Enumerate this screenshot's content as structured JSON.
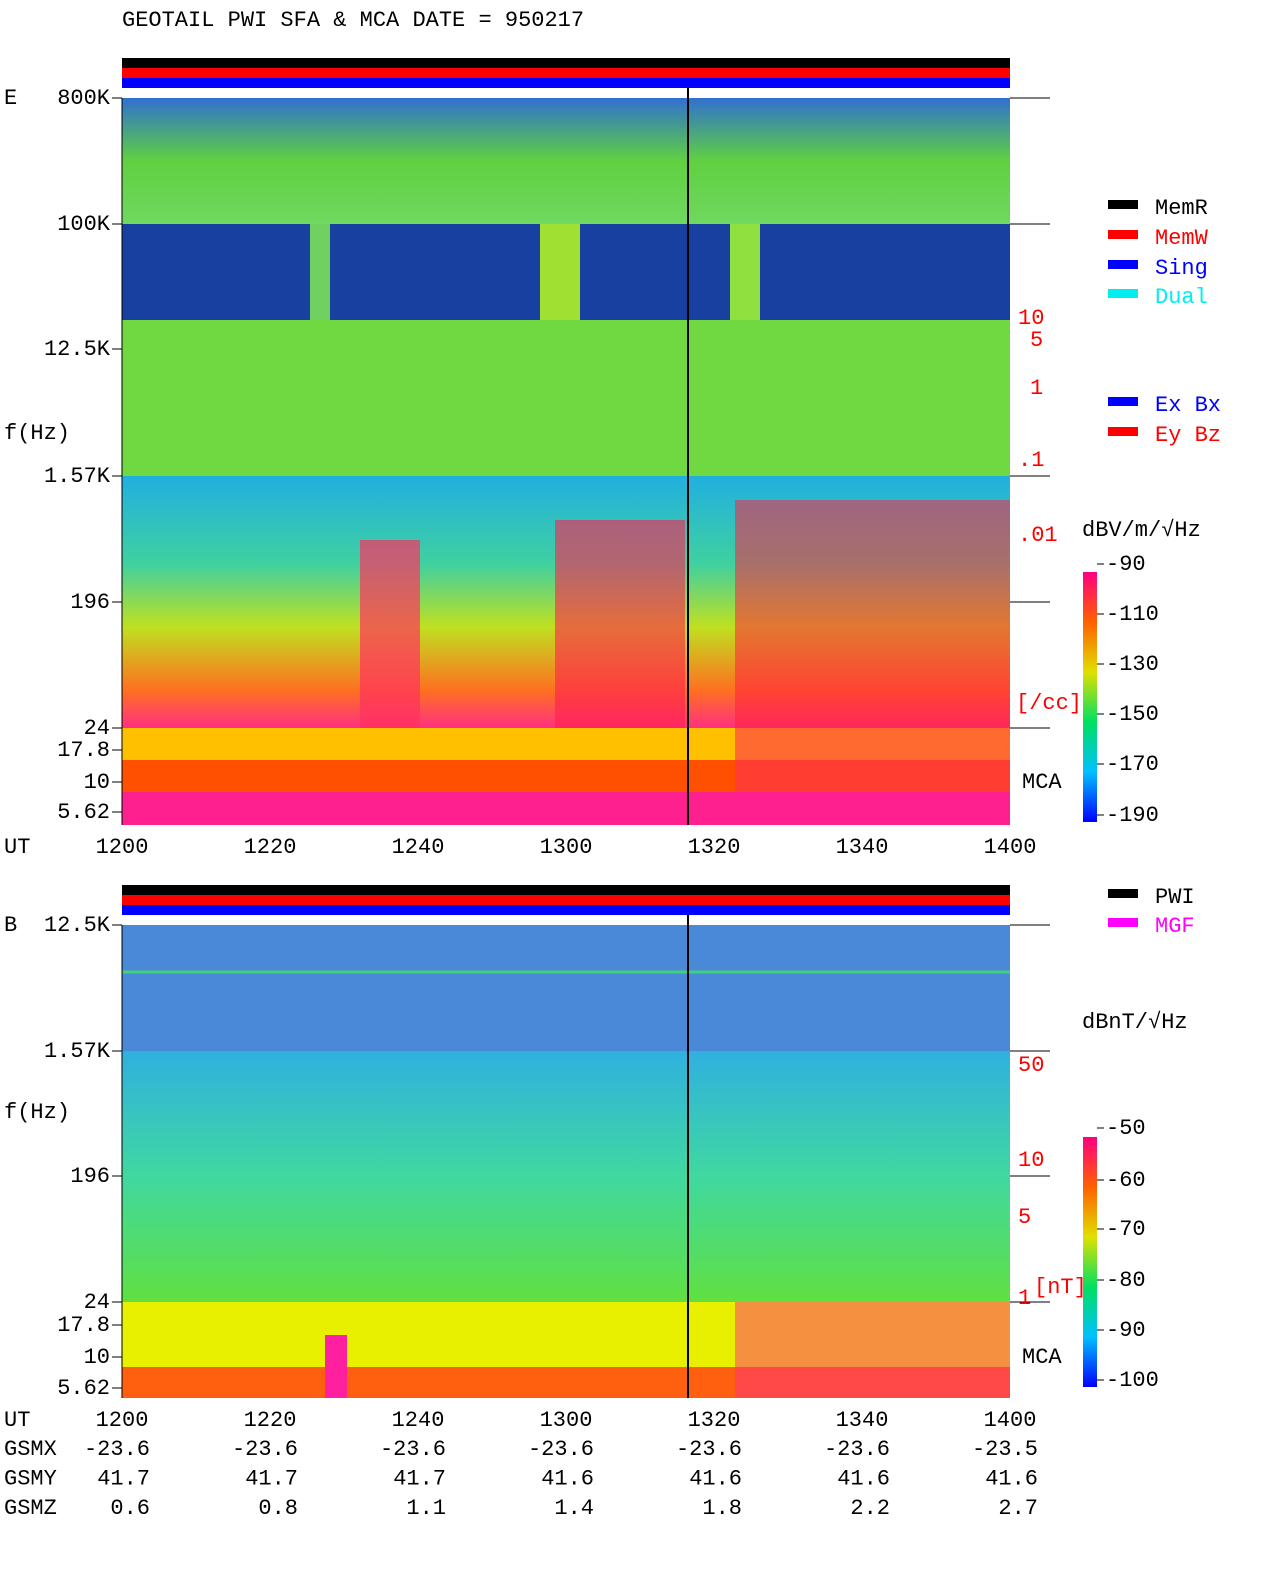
{
  "title": "GEOTAIL  PWI SFA & MCA   DATE = 950217",
  "panels": [
    {
      "label": "E",
      "y_axis_label": "f(Hz)",
      "y_ticks": [
        "800K",
        "100K",
        "12.5K",
        "1.57K",
        "196",
        "24",
        "17.8",
        "10",
        "5.62"
      ],
      "x_axis_label": "UT",
      "x_ticks": [
        "1200",
        "1220",
        "1240",
        "1300",
        "1320",
        "1340",
        "1400"
      ],
      "right_scale": [
        "10",
        "5",
        "1",
        ".1",
        ".01",
        "[/cc]"
      ],
      "mca_label": "MCA",
      "legend": [
        {
          "name": "MemR",
          "color": "#000000"
        },
        {
          "name": "MemW",
          "color": "#ff0000"
        },
        {
          "name": "Sing",
          "color": "#0000ff"
        },
        {
          "name": "Dual",
          "color": "#00eeee"
        }
      ],
      "legend2": [
        {
          "name": "Ex Bx",
          "color": "#0000ff"
        },
        {
          "name": "Ey Bz",
          "color": "#ff0000"
        }
      ],
      "colorbar": {
        "unit": "dBV/m/√Hz",
        "ticks": [
          -90,
          -110,
          -130,
          -150,
          -170,
          -190
        ]
      }
    },
    {
      "label": "B",
      "y_axis_label": "f(Hz)",
      "y_ticks": [
        "12.5K",
        "1.57K",
        "196",
        "24",
        "17.8",
        "10",
        "5.62"
      ],
      "x_axis_label": "UT",
      "x_ticks": [
        "1200",
        "1220",
        "1240",
        "1300",
        "1320",
        "1340",
        "1400"
      ],
      "right_scale": [
        "50",
        "10",
        "5",
        "1",
        "[nT]"
      ],
      "mca_label": "MCA",
      "legend": [
        {
          "name": "PWI",
          "color": "#000000"
        },
        {
          "name": "MGF",
          "color": "#ff00ff"
        }
      ],
      "colorbar": {
        "unit": "dBnT/√Hz",
        "ticks": [
          -50,
          -60,
          -70,
          -80,
          -90,
          -100
        ]
      }
    }
  ],
  "orbit": {
    "rows": [
      {
        "name": "GSMX",
        "values": [
          "-23.6",
          "-23.6",
          "-23.6",
          "-23.6",
          "-23.6",
          "-23.6",
          "-23.5"
        ]
      },
      {
        "name": "GSMY",
        "values": [
          "41.7",
          "41.7",
          "41.7",
          "41.6",
          "41.6",
          "41.6",
          "41.6"
        ]
      },
      {
        "name": "GSMZ",
        "values": [
          "0.6",
          "0.8",
          "1.1",
          "1.4",
          "1.8",
          "2.2",
          "2.7"
        ]
      }
    ]
  }
}
